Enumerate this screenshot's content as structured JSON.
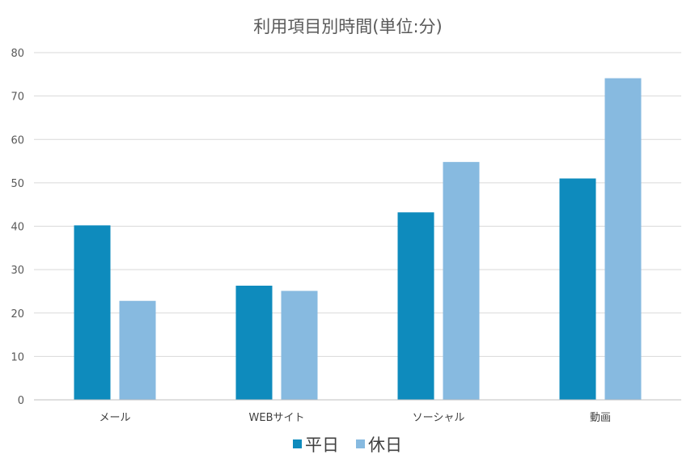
{
  "chart_data": {
    "type": "bar",
    "title": "利用項目別時間(単位:分)",
    "categories": [
      "メール",
      "WEBサイト",
      "ソーシャル",
      "動画"
    ],
    "series": [
      {
        "name": "平日",
        "color": "#0e8bbd",
        "values": [
          40.2,
          26.3,
          43.2,
          51.0
        ]
      },
      {
        "name": "休日",
        "color": "#87bae0",
        "values": [
          22.8,
          25.1,
          54.8,
          74.1
        ]
      }
    ],
    "ylim": [
      0,
      80
    ],
    "yticks": [
      "0",
      "10",
      "20",
      "30",
      "40",
      "50",
      "60",
      "70",
      "80"
    ],
    "grid": true,
    "legend_position": "bottom"
  }
}
